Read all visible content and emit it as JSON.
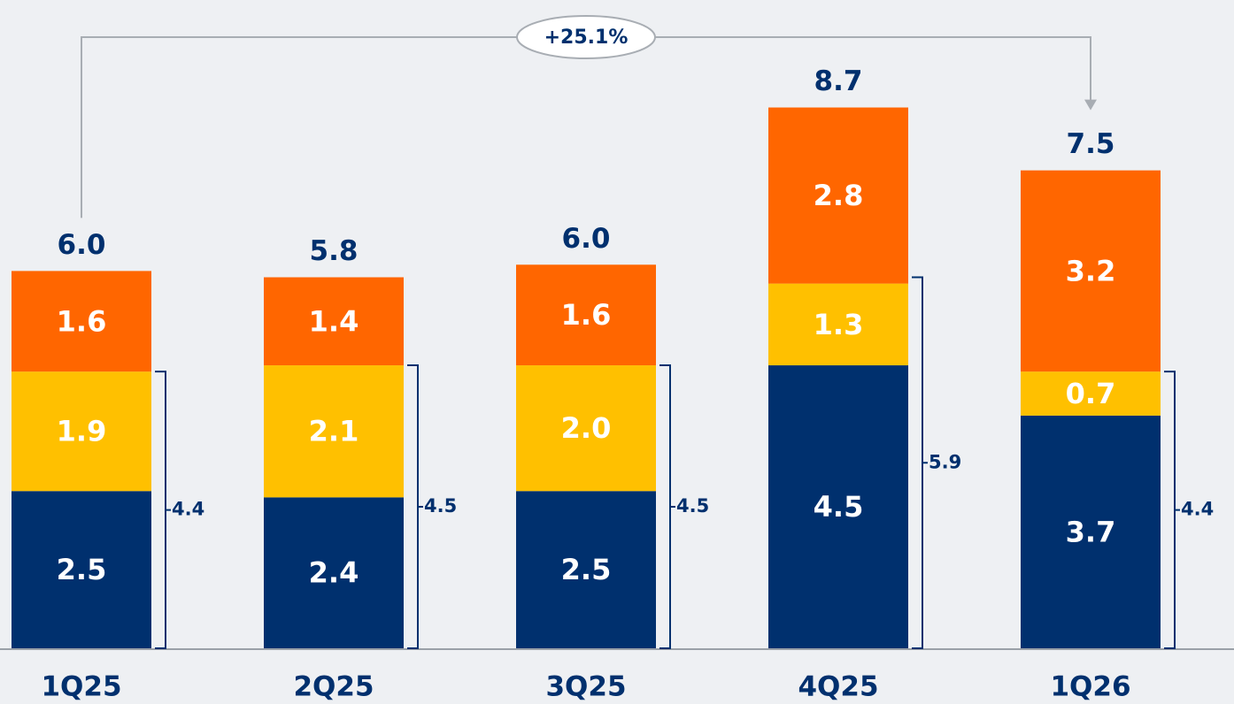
{
  "chart_data": {
    "type": "stacked-bar",
    "annotation": "+25.1%",
    "categories": [
      "1Q25",
      "2Q25",
      "3Q25",
      "4Q25",
      "1Q26"
    ],
    "series": [
      {
        "color": "#00306e",
        "values": [
          2.5,
          2.4,
          2.5,
          4.5,
          3.7
        ],
        "value_labels": [
          "2.5",
          "2.4",
          "2.5",
          "4.5",
          "3.7"
        ]
      },
      {
        "color": "#ffc000",
        "values": [
          1.9,
          2.1,
          2.0,
          1.3,
          0.7
        ],
        "value_labels": [
          "1.9",
          "2.1",
          "2.0",
          "1.3",
          "0.7"
        ]
      },
      {
        "color": "#ff6600",
        "values": [
          1.6,
          1.4,
          1.6,
          2.8,
          3.2
        ],
        "value_labels": [
          "1.6",
          "1.4",
          "1.6",
          "2.8",
          "3.2"
        ]
      }
    ],
    "totals": [
      6.0,
      5.8,
      6.0,
      8.7,
      7.5
    ],
    "totals_labels": [
      "6.0",
      "5.8",
      "6.0",
      "8.7",
      "7.5"
    ],
    "brackets": [
      4.4,
      4.5,
      4.5,
      5.9,
      4.4
    ]
  }
}
